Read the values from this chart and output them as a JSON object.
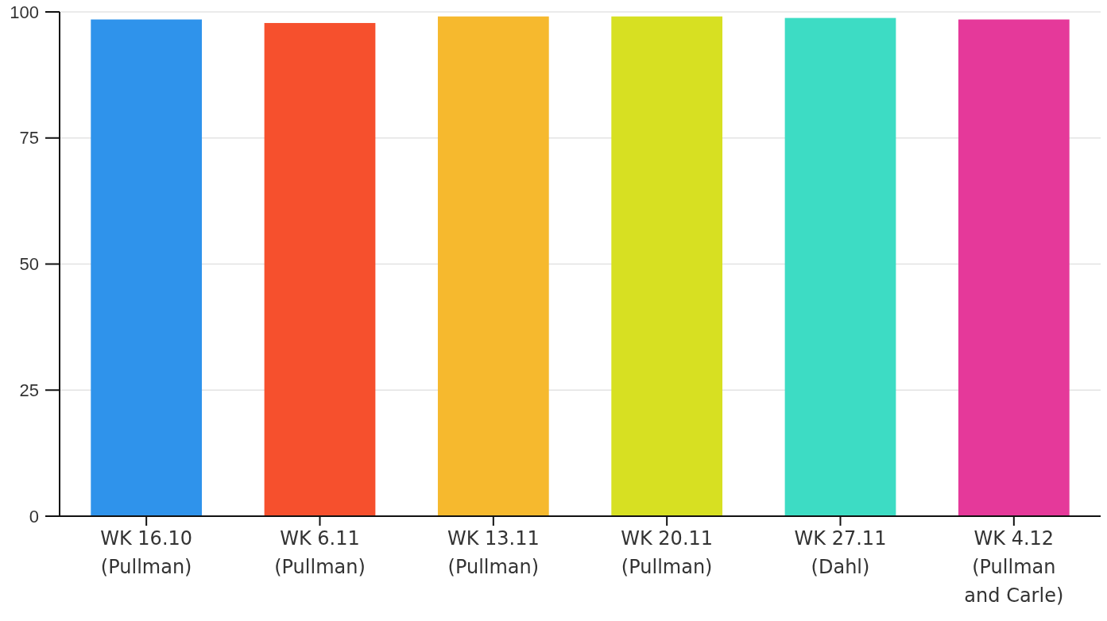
{
  "chart_data": {
    "type": "bar",
    "categories": [
      "WK 16.10 (Pullman)",
      "WK 6.11 (Pullman)",
      "WK 13.11 (Pullman)",
      "WK 20.11 (Pullman)",
      "WK 27.11 (Dahl)",
      "WK 4.12 (Pullman and Carle)"
    ],
    "values": [
      98.5,
      97.8,
      99.1,
      99.1,
      98.8,
      98.5
    ],
    "colors": [
      "#2f93eb",
      "#f6502d",
      "#f6b92e",
      "#d7e022",
      "#3ddcc4",
      "#e5399a"
    ],
    "ylim": [
      0,
      100
    ],
    "yticks": [
      0,
      25,
      50,
      75,
      100
    ],
    "grid": "y"
  }
}
